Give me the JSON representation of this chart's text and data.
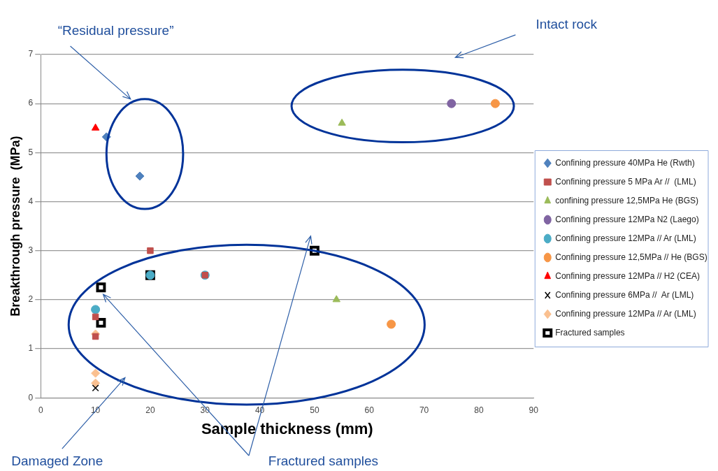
{
  "chart_data": {
    "type": "scatter",
    "xlabel": "Sample thickness (mm)",
    "ylabel": "Breakthrough pressure  (MPa)",
    "xlim": [
      0,
      90
    ],
    "xticks": [
      0,
      10,
      20,
      30,
      40,
      50,
      60,
      70,
      80,
      90
    ],
    "ylim": [
      0,
      7
    ],
    "yticks": [
      0,
      1,
      2,
      3,
      4,
      5,
      6,
      7
    ],
    "grid": "y",
    "legend": "right",
    "annotations": [
      "“Residual pressure”",
      "Intact rock",
      "Damaged Zone",
      "Fractured samples"
    ],
    "series": [
      {
        "name": "Confining pressure 40MPa He (Rwth)",
        "color": "#4f81bd",
        "marker": "diamond",
        "x": [
          12,
          18.1
        ],
        "values": [
          5.32,
          4.52
        ]
      },
      {
        "name": "Confining pressure 5 MPa Ar //  (LML)",
        "color": "#c0504d",
        "marker": "square",
        "x": [
          10,
          10,
          20,
          30
        ],
        "values": [
          1.65,
          1.25,
          3.0,
          2.5
        ]
      },
      {
        "name": "confining pressure 12,5MPa He (BGS)",
        "color": "#9bbb59",
        "marker": "triangle",
        "x": [
          55,
          54
        ],
        "values": [
          5.6,
          2.0
        ]
      },
      {
        "name": "Confining pressure 12MPa N2 (Laego)",
        "color": "#8064a2",
        "marker": "circle",
        "x": [
          75
        ],
        "values": [
          6.0
        ]
      },
      {
        "name": "Confining pressure 12MPa // Ar (LML)",
        "color": "#4bacc6",
        "marker": "circle",
        "x": [
          10,
          20,
          30
        ],
        "values": [
          1.8,
          2.5,
          2.5
        ]
      },
      {
        "name": "Confining pressure 12,5MPa // He (BGS)",
        "color": "#f79646",
        "marker": "circle",
        "x": [
          83,
          64
        ],
        "values": [
          6.0,
          1.5
        ]
      },
      {
        "name": "Confining pressure 12MPa // H2 (CEA)",
        "color": "#ff0000",
        "marker": "triangle",
        "x": [
          10
        ],
        "values": [
          5.5
        ]
      },
      {
        "name": "Confining pressure 6MPa //  Ar (LML)",
        "color": "#000000",
        "marker": "cross",
        "x": [
          10
        ],
        "values": [
          0.2
        ]
      },
      {
        "name": "Confining pressure 12MPa // Ar (LML)",
        "color": "#fac090",
        "marker": "diamond",
        "x": [
          10,
          10,
          10
        ],
        "values": [
          1.3,
          0.5,
          0.3
        ]
      },
      {
        "name": "Fractured samples",
        "color": "#000000",
        "marker": "square",
        "x": [
          11,
          11,
          20,
          50
        ],
        "values": [
          2.25,
          1.53,
          2.5,
          3.0
        ]
      }
    ]
  }
}
